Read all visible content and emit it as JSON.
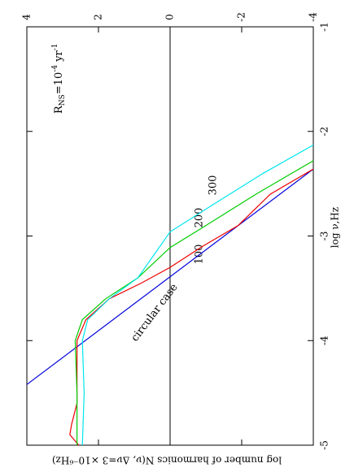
{
  "chart_data": {
    "type": "line",
    "xlabel": "log ν,Hz",
    "ylabel": "log number of harmonics N(ν, Δν=3 ×10⁻⁶Hz)",
    "annotations": {
      "rate": {
        "base": "R",
        "sub": "NS",
        "text": "=10",
        "exp": "-4",
        "unit": " yr",
        "unit_exp": "-1"
      },
      "circular": "circular case",
      "l100": "100",
      "l200": "200",
      "l300": "300"
    },
    "xlim": [
      -5,
      -1
    ],
    "xticks": [
      -5,
      -4,
      -3,
      -2,
      -1
    ],
    "ylim": [
      -4,
      4
    ],
    "yticks": [
      -4,
      -2,
      0,
      2,
      4
    ],
    "hline": 0,
    "series": [
      {
        "name": "circular case",
        "color": "#0000dd",
        "x": [
          -4.42,
          -2.36
        ],
        "values": [
          4,
          -4
        ]
      },
      {
        "name": "100",
        "color": "#ee0000",
        "x": [
          -5,
          -4.9,
          -4.8,
          -4.6,
          -4.2,
          -4,
          -3.8,
          -3.6,
          -3.45,
          -3.3,
          -3.1,
          -2.9,
          -2.6,
          -2.36
        ],
        "values": [
          2.55,
          2.8,
          2.75,
          2.6,
          2.6,
          2.6,
          2.35,
          1.7,
          0.8,
          0,
          -0.9,
          -1.9,
          -2.8,
          -4
        ]
      },
      {
        "name": "200",
        "color": "#00cc00",
        "x": [
          -5,
          -4.5,
          -4,
          -3.8,
          -3.6,
          -3.4,
          -3.11,
          -2.9,
          -2.6,
          -2.28
        ],
        "values": [
          2.6,
          2.6,
          2.65,
          2.45,
          1.8,
          0.9,
          0,
          -1.0,
          -2.4,
          -4
        ]
      },
      {
        "name": "300",
        "color": "#00e5ee",
        "x": [
          -5,
          -4.5,
          -4,
          -3.8,
          -3.6,
          -3.4,
          -2.96,
          -2.7,
          -2.4,
          -2.13
        ],
        "values": [
          2.45,
          2.4,
          2.45,
          2.3,
          1.7,
          0.9,
          0,
          -1.2,
          -2.6,
          -4
        ]
      }
    ]
  }
}
